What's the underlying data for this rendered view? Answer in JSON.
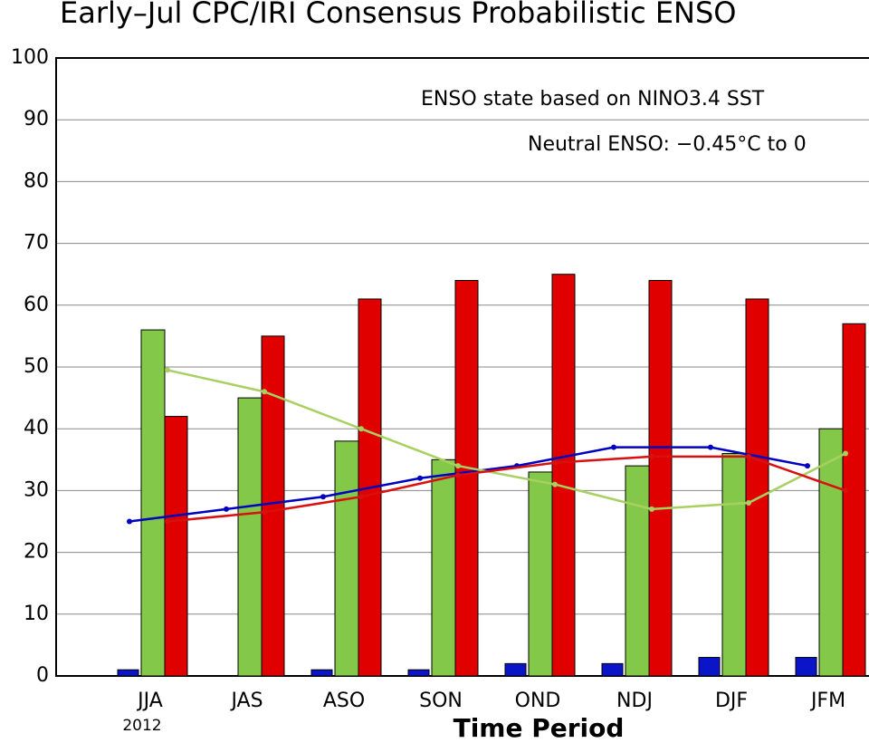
{
  "chart_data": {
    "type": "bar",
    "title": "Early–Jul CPC/IRI Consensus Probabilistic ENSO",
    "annotations": [
      "ENSO state based on NINO3.4 SST",
      "Neutral ENSO: −0.45°C to 0"
    ],
    "categories": [
      "JJA",
      "JAS",
      "ASO",
      "SON",
      "OND",
      "NDJ",
      "DJF",
      "JFM"
    ],
    "year_label": "2012",
    "xlabel": "Time Period",
    "ylim": [
      0,
      100
    ],
    "yticks": [
      0,
      10,
      20,
      30,
      40,
      50,
      60,
      70,
      80,
      90,
      100
    ],
    "grid": true,
    "series": [
      {
        "color": "#0a14c8",
        "values": [
          1,
          0,
          1,
          1,
          2,
          2,
          3,
          3
        ]
      },
      {
        "color": "#84c84a",
        "values": [
          56,
          45,
          38,
          35,
          33,
          34,
          36,
          40
        ]
      },
      {
        "color": "#e00000",
        "values": [
          42,
          55,
          61,
          64,
          65,
          64,
          61,
          57
        ]
      }
    ],
    "lines": [
      {
        "color": "#0000c0",
        "values": [
          25,
          27,
          29,
          32,
          34,
          37,
          37,
          34
        ]
      },
      {
        "color": "#a8d060",
        "values": [
          49.5,
          46,
          40,
          34,
          31,
          27,
          28,
          36
        ]
      },
      {
        "color": "#d81010",
        "values": [
          25,
          26.5,
          29,
          32.5,
          34.5,
          35.5,
          35.5,
          30
        ]
      }
    ]
  }
}
